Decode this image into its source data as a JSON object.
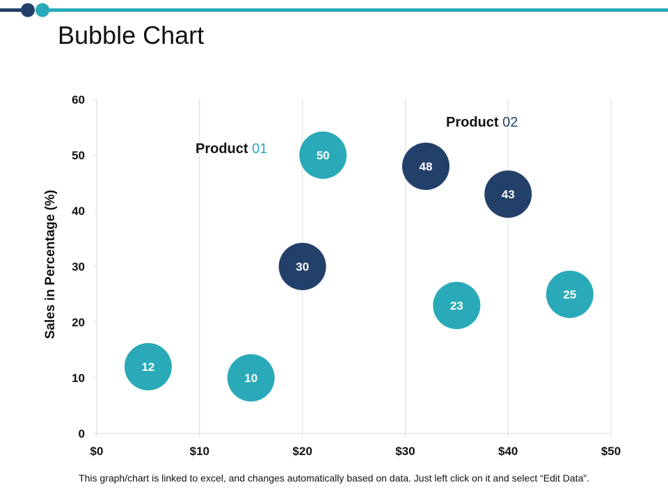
{
  "slide": {
    "title": "Bubble Chart",
    "footer": "This graph/chart is linked to excel, and changes automatically based on data. Just left click on it and select “Edit Data”."
  },
  "colors": {
    "teal": "#2AAAB8",
    "navy": "#23406A",
    "grid": "#D9D9D9",
    "text": "#111111"
  },
  "chart_data": {
    "type": "scatter",
    "title": "",
    "xlabel": "",
    "ylabel": "Sales in Percentage (%)",
    "xlim": [
      0,
      50
    ],
    "ylim": [
      0,
      60
    ],
    "x_ticks": [
      0,
      10,
      20,
      30,
      40,
      50
    ],
    "x_tick_labels": [
      "$0",
      "$10",
      "$20",
      "$30",
      "$40",
      "$50"
    ],
    "y_ticks": [
      0,
      10,
      20,
      30,
      40,
      50,
      60
    ],
    "y_tick_labels": [
      "0",
      "10",
      "20",
      "30",
      "40",
      "50",
      "60"
    ],
    "grid": "vertical",
    "series": [
      {
        "name": "Product 01",
        "label_word": "Product",
        "label_num": "01",
        "color": "#2AAAB8",
        "points": [
          {
            "x": 5,
            "y": 12,
            "label": "12"
          },
          {
            "x": 15,
            "y": 10,
            "label": "10"
          },
          {
            "x": 22,
            "y": 50,
            "label": "50"
          },
          {
            "x": 35,
            "y": 23,
            "label": "23"
          },
          {
            "x": 46,
            "y": 25,
            "label": "25"
          }
        ]
      },
      {
        "name": "Product 02",
        "label_word": "Product",
        "label_num": "02",
        "color": "#23406A",
        "points": [
          {
            "x": 20,
            "y": 30,
            "label": "30"
          },
          {
            "x": 32,
            "y": 48,
            "label": "48"
          },
          {
            "x": 40,
            "y": 43,
            "label": "43"
          }
        ]
      }
    ]
  }
}
